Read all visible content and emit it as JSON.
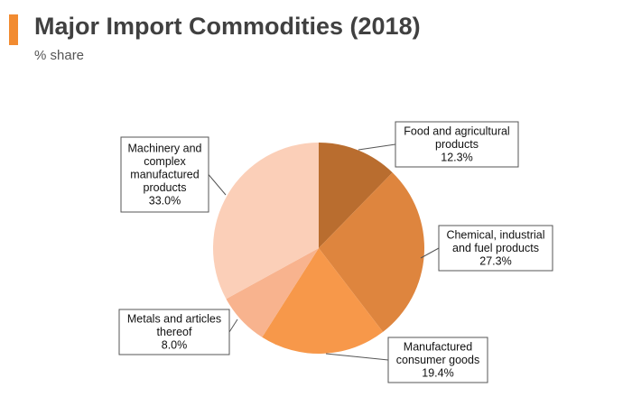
{
  "header": {
    "title": "Major Import Commodities (2018)",
    "subtitle": "% share"
  },
  "colors": {
    "accent": "#F28B30",
    "text": "#404040"
  },
  "chart_data": {
    "type": "pie",
    "title": "Major Import Commodities (2018)",
    "subtitle": "% share",
    "start_angle_deg": 0,
    "direction": "clockwise",
    "unit": "%",
    "slices": [
      {
        "label_lines": [
          "Food and agricultural",
          "products"
        ],
        "label": "Food and agricultural products",
        "value": 12.3,
        "value_label": "12.3%",
        "color": "#B96D2F"
      },
      {
        "label_lines": [
          "Chemical, industrial",
          "and fuel products"
        ],
        "label": "Chemical, industrial and fuel products",
        "value": 27.3,
        "value_label": "27.3%",
        "color": "#DE853E"
      },
      {
        "label_lines": [
          "Manufactured",
          "consumer goods"
        ],
        "label": "Manufactured consumer goods",
        "value": 19.4,
        "value_label": "19.4%",
        "color": "#F7984A"
      },
      {
        "label_lines": [
          "Metals and articles",
          "thereof"
        ],
        "label": "Metals and articles thereof",
        "value": 8.0,
        "value_label": "8.0%",
        "color": "#F8B38E"
      },
      {
        "label_lines": [
          "Machinery and",
          "complex",
          "manufactured",
          "products"
        ],
        "label": "Machinery and complex manufactured products",
        "value": 33.0,
        "value_label": "33.0%",
        "color": "#FBCFB8"
      }
    ]
  }
}
